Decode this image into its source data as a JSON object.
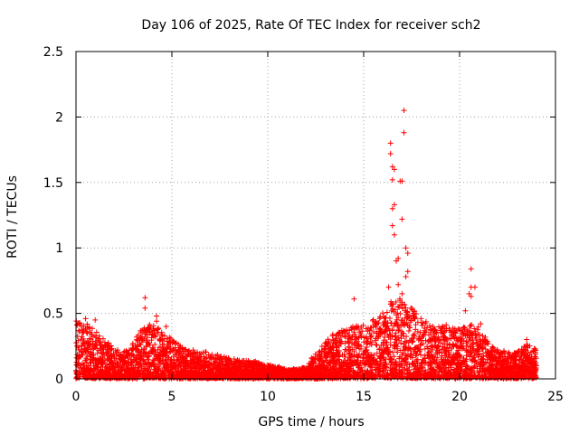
{
  "chart_data": {
    "type": "scatter",
    "title": "Day 106 of 2025, Rate Of TEC Index for receiver sch2",
    "xlabel": "GPS time / hours",
    "ylabel": "ROTI / TECUs",
    "xlim": [
      0,
      25
    ],
    "ylim": [
      0,
      2.5
    ],
    "xticks": [
      0,
      5,
      10,
      15,
      20,
      25
    ],
    "yticks": [
      0,
      0.5,
      1,
      1.5,
      2,
      2.5
    ],
    "xtick_labels": [
      "0",
      "5",
      "10",
      "15",
      "20",
      "25"
    ],
    "ytick_labels": [
      "0",
      "0.5",
      "1",
      "1.5",
      "2",
      "2.5"
    ],
    "grid": true,
    "marker": "plus",
    "color": "#ff0000",
    "envelope": [
      [
        0.0,
        0.45
      ],
      [
        0.5,
        0.42
      ],
      [
        1.0,
        0.38
      ],
      [
        1.5,
        0.3
      ],
      [
        2.0,
        0.22
      ],
      [
        2.5,
        0.2
      ],
      [
        3.0,
        0.28
      ],
      [
        3.5,
        0.4
      ],
      [
        4.0,
        0.42
      ],
      [
        4.5,
        0.36
      ],
      [
        5.0,
        0.3
      ],
      [
        5.5,
        0.25
      ],
      [
        6.0,
        0.22
      ],
      [
        6.5,
        0.2
      ],
      [
        7.0,
        0.2
      ],
      [
        7.5,
        0.17
      ],
      [
        8.0,
        0.15
      ],
      [
        8.5,
        0.14
      ],
      [
        9.0,
        0.14
      ],
      [
        9.5,
        0.12
      ],
      [
        10.0,
        0.1
      ],
      [
        10.5,
        0.09
      ],
      [
        11.0,
        0.07
      ],
      [
        11.5,
        0.07
      ],
      [
        12.0,
        0.09
      ],
      [
        12.5,
        0.2
      ],
      [
        13.0,
        0.28
      ],
      [
        13.5,
        0.36
      ],
      [
        14.0,
        0.38
      ],
      [
        14.5,
        0.4
      ],
      [
        15.0,
        0.42
      ],
      [
        15.5,
        0.45
      ],
      [
        16.0,
        0.5
      ],
      [
        16.5,
        0.6
      ],
      [
        17.0,
        0.62
      ],
      [
        17.5,
        0.55
      ],
      [
        18.0,
        0.45
      ],
      [
        18.5,
        0.42
      ],
      [
        19.0,
        0.42
      ],
      [
        19.5,
        0.4
      ],
      [
        20.0,
        0.38
      ],
      [
        20.5,
        0.42
      ],
      [
        21.0,
        0.4
      ],
      [
        21.5,
        0.28
      ],
      [
        22.0,
        0.22
      ],
      [
        22.5,
        0.2
      ],
      [
        23.0,
        0.2
      ],
      [
        23.5,
        0.26
      ],
      [
        24.0,
        0.22
      ]
    ],
    "outliers": [
      [
        3.6,
        0.62
      ],
      [
        3.6,
        0.54
      ],
      [
        4.2,
        0.48
      ],
      [
        4.2,
        0.44
      ],
      [
        4.7,
        0.4
      ],
      [
        14.5,
        0.61
      ],
      [
        16.4,
        1.8
      ],
      [
        16.4,
        1.72
      ],
      [
        16.5,
        1.62
      ],
      [
        16.6,
        1.6
      ],
      [
        16.5,
        1.52
      ],
      [
        16.5,
        1.3
      ],
      [
        16.6,
        1.33
      ],
      [
        16.5,
        1.17
      ],
      [
        16.6,
        1.1
      ],
      [
        16.7,
        0.9
      ],
      [
        16.8,
        0.92
      ],
      [
        16.9,
        1.51
      ],
      [
        17.0,
        1.51
      ],
      [
        17.0,
        1.22
      ],
      [
        17.1,
        2.05
      ],
      [
        17.1,
        1.88
      ],
      [
        17.2,
        1.0
      ],
      [
        17.3,
        0.96
      ],
      [
        17.3,
        0.82
      ],
      [
        17.2,
        0.78
      ],
      [
        16.8,
        0.72
      ],
      [
        16.3,
        0.7
      ],
      [
        17.0,
        0.65
      ],
      [
        20.6,
        0.84
      ],
      [
        20.6,
        0.7
      ],
      [
        20.8,
        0.7
      ],
      [
        20.5,
        0.65
      ],
      [
        20.6,
        0.63
      ],
      [
        21.1,
        0.42
      ],
      [
        20.3,
        0.52
      ],
      [
        23.5,
        0.3
      ],
      [
        1.0,
        0.45
      ],
      [
        0.5,
        0.46
      ]
    ]
  }
}
